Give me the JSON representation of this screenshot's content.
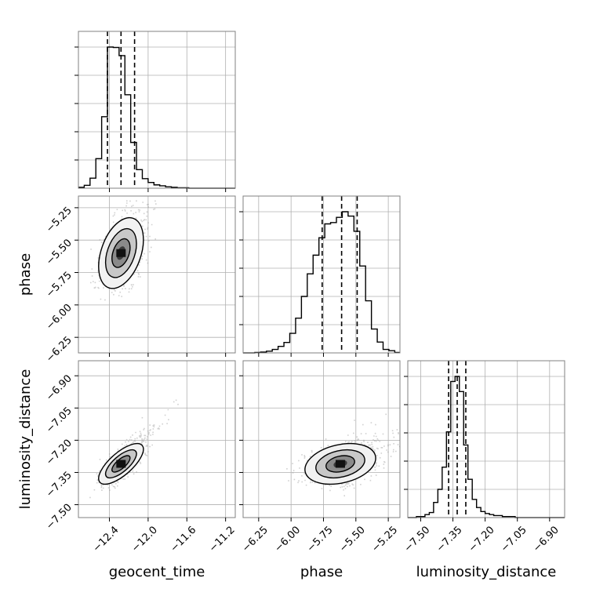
{
  "chart_data": {
    "type": "corner",
    "grid": true,
    "colors": {
      "frame": "#808080",
      "grid": "#b0b0b0",
      "line": "#000000",
      "scatter": "#9a9a9a"
    },
    "parameters": [
      {
        "name": "geocent_time",
        "label": "geocent_time",
        "range": [
          -12.72,
          -11.1
        ],
        "ticks": [
          -12.4,
          -12.0,
          -11.6,
          -11.2
        ],
        "tick_labels": [
          "−12.4",
          "−12.0",
          "−11.6",
          "−11.2"
        ],
        "quantiles": [
          -12.42,
          -12.28,
          -12.14
        ],
        "hist_bins": [
          -12.72,
          -12.66,
          -12.6,
          -12.54,
          -12.48,
          -12.42,
          -12.36,
          -12.3,
          -12.24,
          -12.18,
          -12.12,
          -12.06,
          -12.0,
          -11.94,
          -11.88,
          -11.82,
          -11.76,
          -11.7,
          -11.64,
          -11.58,
          -11.52,
          -11.46,
          -11.4,
          -11.34,
          -11.28,
          -11.22,
          -11.16,
          -11.1
        ],
        "hist_counts": [
          2,
          6,
          21,
          62,
          150,
          296,
          295,
          278,
          196,
          96,
          39,
          20,
          12,
          7,
          5,
          3,
          2,
          1,
          1,
          0,
          0,
          0,
          0,
          0,
          0,
          0,
          0
        ]
      },
      {
        "name": "phase",
        "label": "phase",
        "range": [
          -6.37,
          -5.16
        ],
        "ticks": [
          -6.25,
          -6.0,
          -5.75,
          -5.5,
          -5.25
        ],
        "tick_labels": [
          "−6.25",
          "−6.00",
          "−5.75",
          "−5.50",
          "−5.25"
        ],
        "quantiles": [
          -5.76,
          -5.61,
          -5.49
        ],
        "hist_bins": [
          -6.37,
          -6.325,
          -6.28,
          -6.235,
          -6.19,
          -6.145,
          -6.1,
          -6.055,
          -6.01,
          -5.965,
          -5.92,
          -5.875,
          -5.83,
          -5.785,
          -5.74,
          -5.695,
          -5.65,
          -5.605,
          -5.56,
          -5.515,
          -5.47,
          -5.425,
          -5.38,
          -5.335,
          -5.29,
          -5.245,
          -5.2,
          -5.16
        ],
        "hist_counts": [
          0,
          0,
          1,
          2,
          4,
          8,
          15,
          24,
          45,
          80,
          130,
          182,
          225,
          265,
          297,
          300,
          312,
          325,
          315,
          280,
          200,
          120,
          55,
          25,
          8,
          5,
          1
        ]
      },
      {
        "name": "luminosity_distance",
        "label": "luminosity_distance",
        "range": [
          -7.56,
          -6.83
        ],
        "ticks": [
          -7.5,
          -7.35,
          -7.2,
          -7.05,
          -6.9
        ],
        "tick_labels": [
          "−7.50",
          "−7.35",
          "−7.20",
          "−7.05",
          "−6.90"
        ],
        "quantiles": [
          -7.37,
          -7.33,
          -7.29
        ],
        "hist_bins": [
          -7.56,
          -7.54,
          -7.52,
          -7.5,
          -7.48,
          -7.46,
          -7.44,
          -7.42,
          -7.4,
          -7.38,
          -7.36,
          -7.34,
          -7.32,
          -7.3,
          -7.28,
          -7.26,
          -7.24,
          -7.22,
          -7.2,
          -7.18,
          -7.16,
          -7.14,
          -7.12,
          -7.1,
          -7.08,
          -7.06,
          -7.04,
          -7.02,
          -7.0,
          -6.98,
          -6.96,
          -6.94,
          -6.92,
          -6.9,
          -6.88,
          -6.86,
          -6.84,
          -6.83
        ],
        "hist_counts": [
          0,
          0,
          1,
          1,
          3,
          5,
          15,
          28,
          50,
          85,
          135,
          140,
          125,
          72,
          38,
          18,
          10,
          6,
          4,
          3,
          2,
          2,
          1,
          1,
          1,
          0,
          0,
          0,
          0,
          0,
          0,
          0,
          0,
          0,
          0,
          0,
          0
        ]
      }
    ],
    "pairs": [
      {
        "x": "geocent_time",
        "y": "phase",
        "mean": [
          -12.28,
          -5.6
        ],
        "sd": [
          0.11,
          0.13
        ],
        "corr": 0.38
      },
      {
        "x": "geocent_time",
        "y": "luminosity_distance",
        "mean": [
          -12.28,
          -7.31
        ],
        "sd": [
          0.11,
          0.045
        ],
        "corr": 0.72
      },
      {
        "x": "phase",
        "y": "luminosity_distance",
        "mean": [
          -5.62,
          -7.31
        ],
        "sd": [
          0.13,
          0.045
        ],
        "corr": 0.28
      }
    ]
  }
}
